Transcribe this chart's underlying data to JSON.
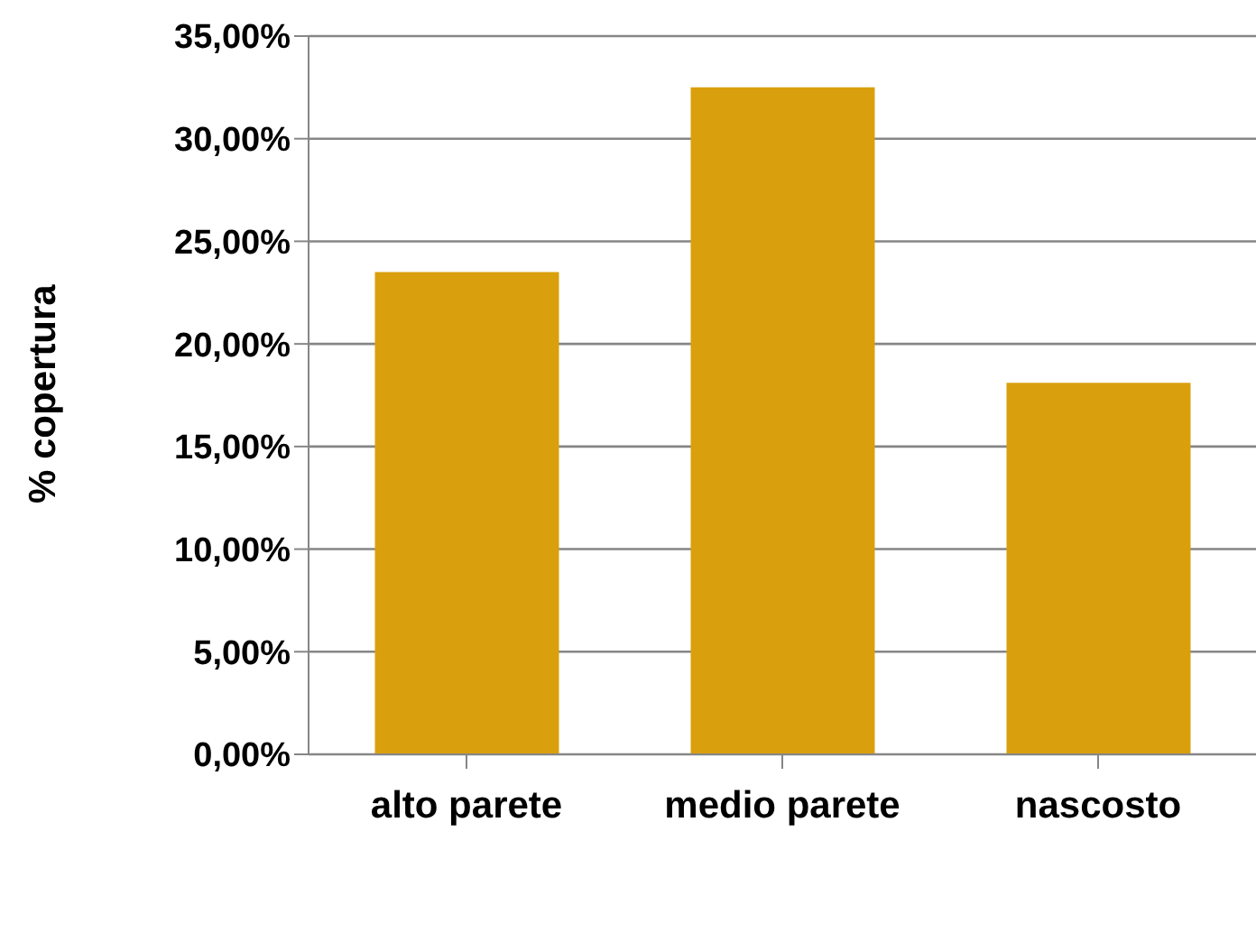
{
  "chart_data": {
    "type": "bar",
    "ylabel": "% copertura",
    "categories": [
      "alto parete",
      "medio parete",
      "nascosto"
    ],
    "values": [
      23.5,
      32.5,
      18.1
    ],
    "color": "#da9f0c",
    "ylim": [
      0,
      35
    ],
    "yticks": [
      {
        "value": 0,
        "label": "0,00%"
      },
      {
        "value": 5,
        "label": "5,00%"
      },
      {
        "value": 10,
        "label": "10,00%"
      },
      {
        "value": 15,
        "label": "15,00%"
      },
      {
        "value": 20,
        "label": "20,00%"
      },
      {
        "value": 25,
        "label": "25,00%"
      },
      {
        "value": 30,
        "label": "30,00%"
      },
      {
        "value": 35,
        "label": "35,00%"
      }
    ],
    "grid": "y"
  }
}
